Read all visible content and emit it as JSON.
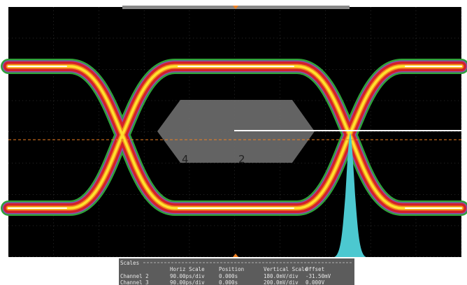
{
  "markers": [
    "4",
    "2"
  ],
  "scales": {
    "title": "Scales",
    "headers": [
      "Horiz Scale",
      "Position",
      "Vertical Scale",
      "Offset"
    ],
    "rows": [
      {
        "label": "Channel 2",
        "cells": [
          "90.00ps/div",
          "0.000s",
          "180.0mV/div",
          "-31.50mV"
        ]
      },
      {
        "label": "Channel 3",
        "cells": [
          "90.00ps/div",
          "0.000s",
          "200.0mV/div",
          "0.000V"
        ]
      }
    ]
  }
}
